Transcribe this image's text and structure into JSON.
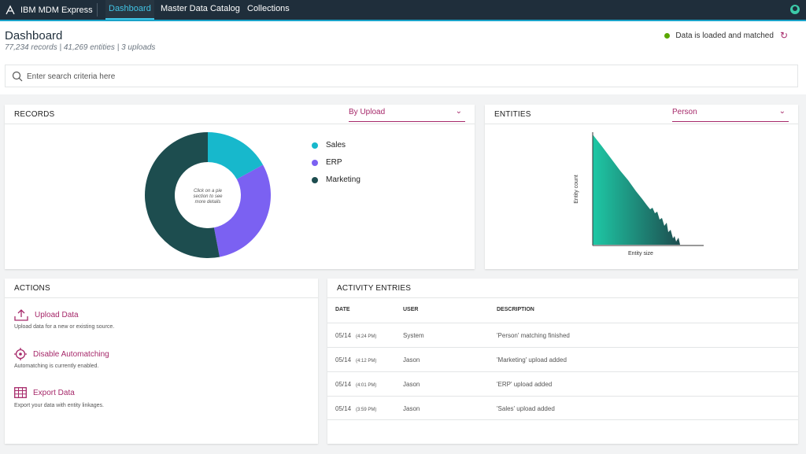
{
  "app": {
    "name": "IBM MDM Express"
  },
  "nav": {
    "tabs": [
      {
        "label": "Dashboard"
      },
      {
        "label": "Master Data Catalog"
      },
      {
        "label": "Collections"
      }
    ]
  },
  "page": {
    "title": "Dashboard",
    "stats": "77,234 records | 41,269 entities | 3 uploads"
  },
  "status": {
    "text": "Data is loaded and matched",
    "color": "#5aa700"
  },
  "search": {
    "placeholder": "Enter search criteria here"
  },
  "records": {
    "title": "RECORDS",
    "dropdown": "By Upload",
    "center_text": "Click on a pie section to see more details",
    "chart_data": {
      "type": "pie",
      "title": "RECORDS",
      "categories": [
        "Sales",
        "ERP",
        "Marketing"
      ],
      "values": [
        17,
        30,
        53
      ],
      "colors": [
        "#17b8cc",
        "#7b61f2",
        "#1d4d4f"
      ]
    }
  },
  "entities": {
    "title": "ENTITIES",
    "dropdown": "Person",
    "xlabel": "Entity size",
    "ylabel": "Entity count"
  },
  "actions": {
    "title": "ACTIONS",
    "items": [
      {
        "label": "Upload Data",
        "desc": "Upload data for a new or existing source."
      },
      {
        "label": "Disable Automatching",
        "desc": "Automatching is currently enabled."
      },
      {
        "label": "Export Data",
        "desc": "Export your data with entity linkages."
      }
    ]
  },
  "activity": {
    "title": "ACTIVITY ENTRIES",
    "columns": {
      "date": "DATE",
      "user": "USER",
      "description": "DESCRIPTION"
    },
    "rows": [
      {
        "date": "05/14",
        "time": "(4:24 PM)",
        "user": "System",
        "description": "'Person' matching finished"
      },
      {
        "date": "05/14",
        "time": "(4:12 PM)",
        "user": "Jason",
        "description": "'Marketing' upload added"
      },
      {
        "date": "05/14",
        "time": "(4:01 PM)",
        "user": "Jason",
        "description": "'ERP' upload added"
      },
      {
        "date": "05/14",
        "time": "(3:59 PM)",
        "user": "Jason",
        "description": "'Sales' upload added"
      }
    ]
  },
  "theme": {
    "accent": "#a6296a",
    "nav_bg": "#1f2e3b",
    "nav_active": "#41c3e4"
  }
}
